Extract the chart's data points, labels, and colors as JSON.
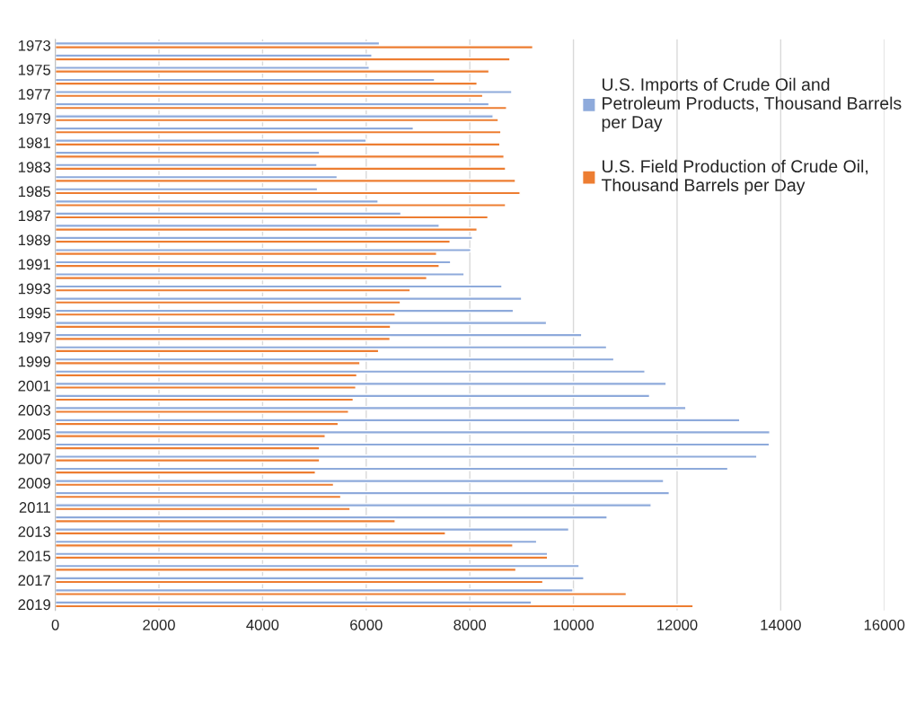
{
  "chart_data": {
    "type": "bar",
    "orientation": "horizontal",
    "categories": [
      "1973",
      null,
      "1975",
      null,
      "1977",
      null,
      "1979",
      null,
      "1981",
      null,
      "1983",
      null,
      "1985",
      null,
      "1987",
      null,
      "1989",
      null,
      "1991",
      null,
      "1993",
      null,
      "1995",
      null,
      "1997",
      null,
      "1999",
      null,
      "2001",
      null,
      "2003",
      null,
      "2005",
      null,
      "2007",
      null,
      "2009",
      null,
      "2011",
      null,
      "2013",
      null,
      "2015",
      null,
      "2017",
      null,
      "2019"
    ],
    "series": [
      {
        "name": "U.S. Imports of Crude Oil and Petroleum Products, Thousand Barrels per Day",
        "color": "#8eaadb",
        "values": [
          6256,
          6110,
          6060,
          7320,
          8810,
          8370,
          8450,
          6910,
          6000,
          5100,
          5050,
          5440,
          5060,
          6230,
          6670,
          7410,
          8050,
          8020,
          7630,
          7890,
          8620,
          9000,
          8840,
          9480,
          10160,
          10640,
          10780,
          11380,
          11790,
          11470,
          12170,
          13210,
          13790,
          13780,
          13540,
          12980,
          11740,
          11850,
          11500,
          10650,
          9910,
          9290,
          9500,
          10110,
          10200,
          9990,
          9190
        ]
      },
      {
        "name": "U.S. Field Production of Crude Oil, Thousand Barrels per Day",
        "color": "#ed7d31",
        "values": [
          9216,
          8775,
          8370,
          8140,
          8250,
          8710,
          8550,
          8600,
          8580,
          8660,
          8690,
          8880,
          8970,
          8690,
          8350,
          8140,
          7620,
          7360,
          7410,
          7170,
          6850,
          6660,
          6560,
          6470,
          6460,
          6240,
          5880,
          5820,
          5800,
          5750,
          5660,
          5460,
          5210,
          5100,
          5100,
          5020,
          5370,
          5510,
          5690,
          6560,
          7530,
          8830,
          9500,
          8890,
          9410,
          11020,
          12310
        ]
      }
    ],
    "xlim": [
      0,
      16000
    ],
    "xticks": [
      0,
      2000,
      4000,
      6000,
      8000,
      10000,
      12000,
      14000,
      16000
    ],
    "grid": "x",
    "legend": "top right"
  }
}
